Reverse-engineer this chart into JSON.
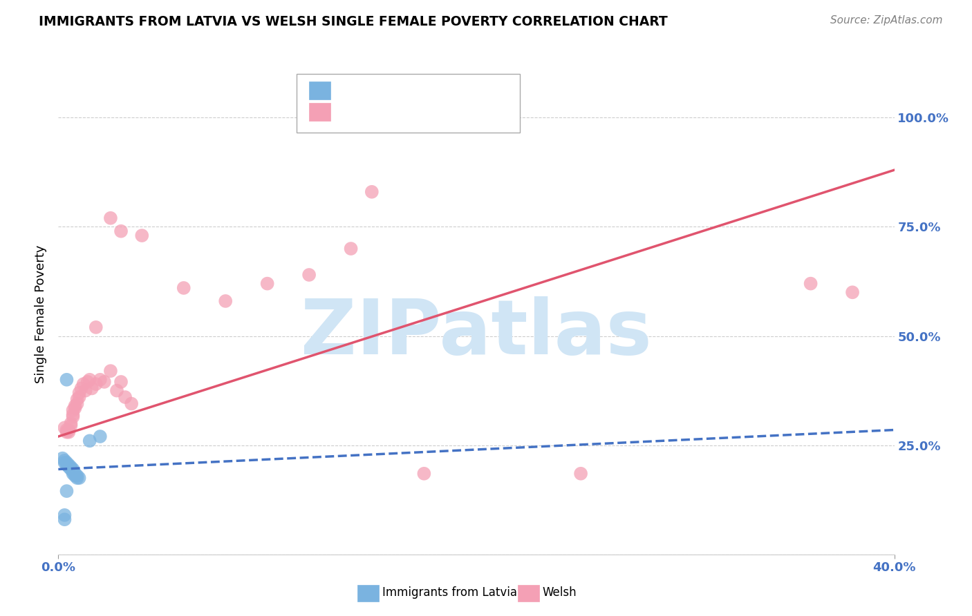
{
  "title": "IMMIGRANTS FROM LATVIA VS WELSH SINGLE FEMALE POVERTY CORRELATION CHART",
  "source": "Source: ZipAtlas.com",
  "ylabel": "Single Female Poverty",
  "right_yticks": [
    0.0,
    0.25,
    0.5,
    0.75,
    1.0
  ],
  "right_yticklabels": [
    "",
    "25.0%",
    "50.0%",
    "75.0%",
    "100.0%"
  ],
  "xlim": [
    0.0,
    0.4
  ],
  "ylim": [
    0.0,
    1.1
  ],
  "blue_scatter": [
    [
      0.002,
      0.22
    ],
    [
      0.003,
      0.215
    ],
    [
      0.003,
      0.21
    ],
    [
      0.004,
      0.21
    ],
    [
      0.004,
      0.205
    ],
    [
      0.005,
      0.205
    ],
    [
      0.005,
      0.2
    ],
    [
      0.006,
      0.2
    ],
    [
      0.006,
      0.195
    ],
    [
      0.007,
      0.195
    ],
    [
      0.007,
      0.19
    ],
    [
      0.007,
      0.185
    ],
    [
      0.008,
      0.185
    ],
    [
      0.008,
      0.18
    ],
    [
      0.009,
      0.18
    ],
    [
      0.009,
      0.175
    ],
    [
      0.01,
      0.175
    ],
    [
      0.015,
      0.26
    ],
    [
      0.02,
      0.27
    ],
    [
      0.004,
      0.4
    ],
    [
      0.004,
      0.145
    ],
    [
      0.003,
      0.09
    ],
    [
      0.003,
      0.08
    ]
  ],
  "pink_scatter": [
    [
      0.003,
      0.29
    ],
    [
      0.004,
      0.285
    ],
    [
      0.004,
      0.28
    ],
    [
      0.005,
      0.285
    ],
    [
      0.005,
      0.28
    ],
    [
      0.006,
      0.3
    ],
    [
      0.006,
      0.295
    ],
    [
      0.007,
      0.33
    ],
    [
      0.007,
      0.32
    ],
    [
      0.007,
      0.315
    ],
    [
      0.008,
      0.34
    ],
    [
      0.008,
      0.335
    ],
    [
      0.009,
      0.355
    ],
    [
      0.009,
      0.345
    ],
    [
      0.01,
      0.37
    ],
    [
      0.01,
      0.36
    ],
    [
      0.011,
      0.38
    ],
    [
      0.012,
      0.39
    ],
    [
      0.013,
      0.375
    ],
    [
      0.014,
      0.395
    ],
    [
      0.015,
      0.4
    ],
    [
      0.016,
      0.38
    ],
    [
      0.018,
      0.39
    ],
    [
      0.02,
      0.4
    ],
    [
      0.022,
      0.395
    ],
    [
      0.025,
      0.42
    ],
    [
      0.028,
      0.375
    ],
    [
      0.03,
      0.395
    ],
    [
      0.032,
      0.36
    ],
    [
      0.035,
      0.345
    ],
    [
      0.018,
      0.52
    ],
    [
      0.06,
      0.61
    ],
    [
      0.08,
      0.58
    ],
    [
      0.1,
      0.62
    ],
    [
      0.12,
      0.64
    ],
    [
      0.14,
      0.7
    ],
    [
      0.15,
      0.83
    ],
    [
      0.175,
      0.185
    ],
    [
      0.25,
      0.185
    ],
    [
      0.36,
      0.62
    ],
    [
      0.38,
      0.6
    ],
    [
      0.025,
      0.77
    ],
    [
      0.03,
      0.74
    ],
    [
      0.04,
      0.73
    ]
  ],
  "blue_line": {
    "x0": 0.0,
    "y0": 0.195,
    "x1": 0.4,
    "y1": 0.285
  },
  "pink_line": {
    "x0": 0.0,
    "y0": 0.27,
    "x1": 0.4,
    "y1": 0.88
  },
  "dot_color_blue": "#7ab3e0",
  "dot_color_pink": "#f4a0b5",
  "line_color_blue": "#4472c4",
  "line_color_pink": "#e0546e",
  "background": "#ffffff",
  "grid_color": "#c8c8c8",
  "watermark_text": "ZIPatlas",
  "watermark_color": "#d0e5f5",
  "legend_R_color": "#4472c4",
  "legend_text_color": "#333333"
}
